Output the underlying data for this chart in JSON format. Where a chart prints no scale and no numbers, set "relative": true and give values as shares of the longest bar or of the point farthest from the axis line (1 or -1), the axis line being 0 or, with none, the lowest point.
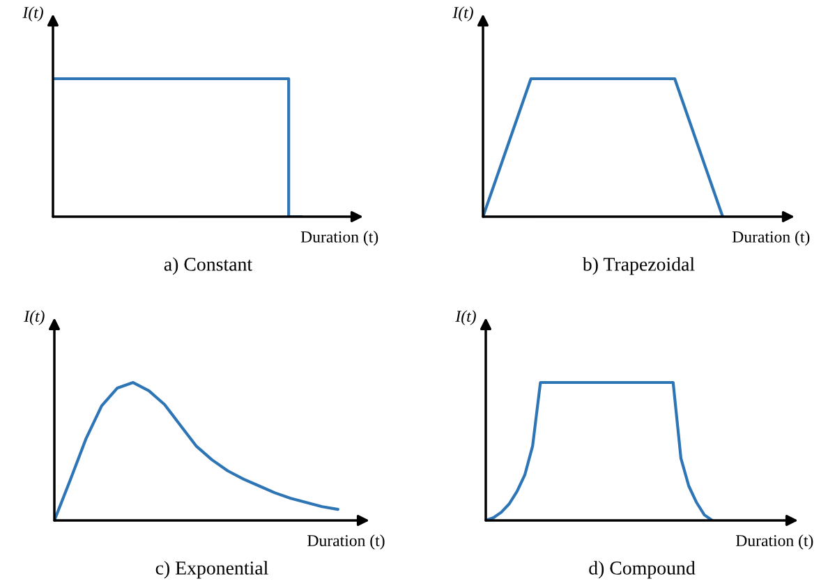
{
  "chart_data": [
    {
      "type": "step",
      "title": "a) Constant",
      "xlabel": "Duration (t)",
      "ylabel": "I(t)",
      "relative": true,
      "grid": false,
      "categories": [
        null,
        null,
        null,
        null,
        null,
        null,
        null,
        null,
        null,
        null,
        null,
        null,
        null,
        null,
        null,
        null,
        null,
        null,
        null,
        null,
        null,
        null,
        null,
        null,
        null,
        null
      ],
      "series": [
        {
          "color": "#2e75b6",
          "values": [
            1,
            1,
            1,
            1,
            1,
            1,
            1,
            1,
            1,
            1,
            1,
            1,
            1,
            1,
            1,
            1,
            1,
            1,
            1,
            0,
            null,
            null,
            null,
            null,
            null,
            null
          ]
        }
      ]
    },
    {
      "type": "line",
      "title": "b) Trapezoidal",
      "xlabel": "Duration (t)",
      "ylabel": "I(t)",
      "relative": true,
      "grid": false,
      "categories": [
        null,
        null,
        null,
        null,
        null,
        null,
        null,
        null,
        null,
        null,
        null,
        null,
        null,
        null,
        null,
        null,
        null,
        null,
        null,
        null,
        null,
        null,
        null,
        null,
        null,
        null,
        null
      ],
      "series": [
        {
          "color": "#2e75b6",
          "values": [
            0,
            0.25,
            0.5,
            0.75,
            1,
            1,
            1,
            1,
            1,
            1,
            1,
            1,
            1,
            1,
            1,
            1,
            1,
            0.75,
            0.5,
            0.25,
            0,
            null,
            null,
            null,
            null,
            null,
            null
          ]
        }
      ]
    },
    {
      "type": "line",
      "title": "c) Exponential",
      "xlabel": "Duration (t)",
      "ylabel": "I(t)",
      "relative": true,
      "grid": false,
      "categories": [
        null,
        null,
        null,
        null,
        null,
        null,
        null,
        null,
        null,
        null,
        null,
        null,
        null,
        null,
        null,
        null,
        null,
        null,
        null,
        null,
        null
      ],
      "series": [
        {
          "color": "#2e75b6",
          "values": [
            0,
            0.29,
            0.59,
            0.83,
            0.96,
            1,
            0.94,
            0.84,
            0.69,
            0.54,
            0.44,
            0.36,
            0.3,
            0.25,
            0.2,
            0.16,
            0.13,
            0.1,
            0.08,
            null,
            null
          ]
        }
      ]
    },
    {
      "type": "line",
      "title": "d) Compound",
      "xlabel": "Duration (t)",
      "ylabel": "I(t)",
      "relative": true,
      "grid": false,
      "categories": [
        null,
        null,
        null,
        null,
        null,
        null,
        null,
        null,
        null,
        null,
        null,
        null,
        null,
        null,
        null,
        null,
        null,
        null,
        null,
        null,
        null,
        null,
        null,
        null,
        null,
        null,
        null,
        null,
        null,
        null,
        null,
        null,
        null,
        null,
        null,
        null,
        null,
        null,
        null,
        null,
        null
      ],
      "series": [
        {
          "color": "#2e75b6",
          "values": [
            0,
            0.02,
            0.06,
            0.12,
            0.21,
            0.33,
            0.54,
            1,
            1,
            1,
            1,
            1,
            1,
            1,
            1,
            1,
            1,
            1,
            1,
            1,
            1,
            1,
            1,
            1,
            1,
            0.45,
            0.25,
            0.13,
            0.04,
            0,
            null,
            null,
            null,
            null,
            null,
            null,
            null,
            null,
            null,
            null,
            null
          ]
        }
      ]
    }
  ]
}
